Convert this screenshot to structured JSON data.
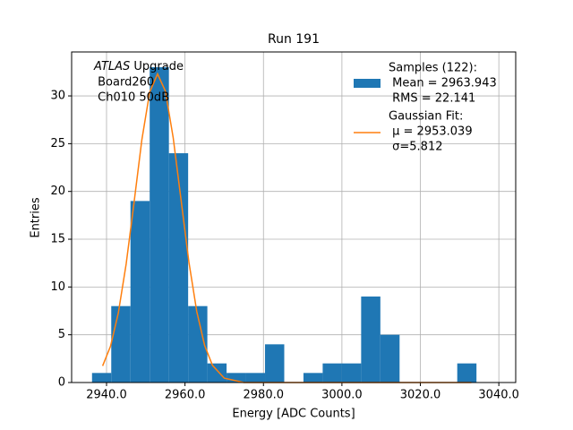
{
  "chart_data": {
    "type": "histogram",
    "title": "Run 191",
    "x_label": "Energy [ADC Counts]",
    "y_label": "Entries",
    "bins": [
      2936.3,
      2941.2,
      2946.1,
      2951.0,
      2955.9,
      2960.8,
      2965.7,
      2970.6,
      2975.5,
      2980.4,
      2985.3,
      2990.2,
      2995.1,
      3000.0,
      3004.9,
      3009.8,
      3014.7,
      3019.6,
      3024.5,
      3029.4,
      3034.3
    ],
    "counts": [
      1,
      8,
      19,
      33,
      24,
      8,
      2,
      1,
      1,
      4,
      0,
      1,
      2,
      2,
      9,
      5,
      0,
      0,
      0,
      2
    ],
    "color": "#1f77b4",
    "fit": {
      "color": "#ff7f0e",
      "x": [
        2939,
        2941,
        2943,
        2945,
        2947,
        2949,
        2951,
        2953,
        2955,
        2957,
        2959,
        2961,
        2963,
        2965,
        2967,
        2970,
        2975,
        2980,
        3000,
        3033
      ],
      "values": [
        1.74,
        3.78,
        7.27,
        12.4,
        18.8,
        25.4,
        30.4,
        32.3,
        30.5,
        25.6,
        19.1,
        12.6,
        7.43,
        3.89,
        1.8,
        0.46,
        0,
        0,
        0,
        0
      ]
    },
    "legend": {
      "position": "upper right",
      "hist_lines": [
        "Samples (122):",
        " Mean = 2963.943",
        " RMS = 22.141"
      ],
      "fit_lines": [
        "Gaussian Fit:",
        " μ = 2953.039",
        " σ=5.812"
      ]
    },
    "annotation": {
      "italic": "ATLAS",
      "rest": " Upgrade",
      "lines": [
        " Board260",
        " Ch010 50dB"
      ]
    },
    "xlim": [
      2931.1,
      3044.3
    ],
    "ylim": [
      0,
      34.6
    ],
    "xticks": [
      {
        "value": 2940,
        "label": "2940.0"
      },
      {
        "value": 2960,
        "label": "2960.0"
      },
      {
        "value": 2980,
        "label": "2980.0"
      },
      {
        "value": 3000,
        "label": "3000.0"
      },
      {
        "value": 3020,
        "label": "3020.0"
      },
      {
        "value": 3040,
        "label": "3040.0"
      }
    ],
    "yticks": [
      0,
      5,
      10,
      15,
      20,
      25,
      30
    ],
    "grid": true
  }
}
